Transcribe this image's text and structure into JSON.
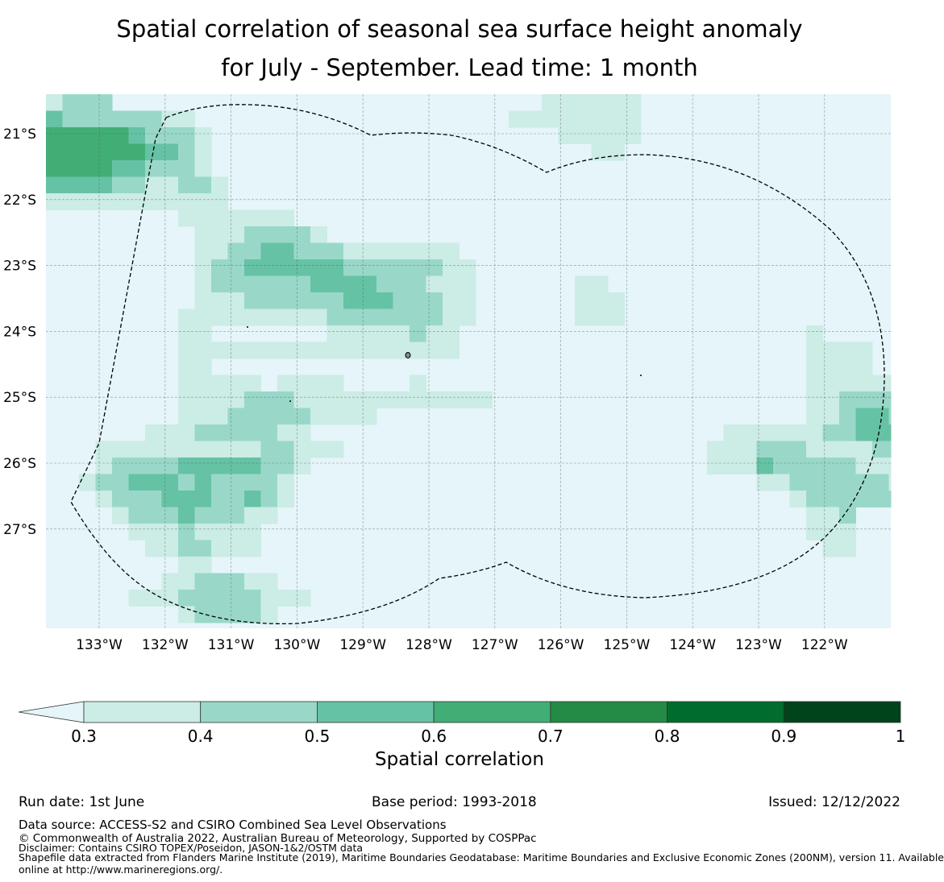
{
  "title": {
    "line1": "Spatial correlation of seasonal sea surface height anomaly",
    "line2": "for July - September. Lead time: 1 month"
  },
  "map": {
    "lat_ticks": [
      "21°S",
      "22°S",
      "23°S",
      "24°S",
      "25°S",
      "26°S",
      "27°S"
    ],
    "lon_ticks": [
      "133°W",
      "132°W",
      "131°W",
      "130°W",
      "129°W",
      "128°W",
      "127°W",
      "126°W",
      "125°W",
      "124°W",
      "123°W",
      "122°W"
    ],
    "background_color": "#e5f5f9",
    "grid_rows": [
      "1222000000000000000000000000001111110000000000000000",
      "3222222110000000000000000000111111110000000000000000",
      "4444432221000000000000000000000111110000000000000000",
      "4444443321000000000000000000000001100000000000000000",
      "4444332221000000000000000000000000000000000000000000",
      "3333221122100000000000000000000000000000000000000000",
      "1111111111100000000000000000000000000000000000000000",
      "0000000011111110000000000000000000000000000000000000",
      "0000000001112222100000000000000000000000000000000000",
      "0000000001122332221111111000000000000000000000000000",
      "0000000001223333332222221100000000000000000000000000",
      "0000000001222222333322211100000011000000000000000000",
      "0000000001112222223332221100000011100000000000000000",
      "0000000011111111122222221100000011100000000000000000",
      "0000000011000000011111211000000000000000000000100000",
      "0000000011111111111111111000000000000000000000111100000000",
      "0000000011000000000000000000000000000000000000111100000000",
      "0000000011111011110000100000000000000000000000111111000000",
      "0000000011112221111111111110000000000000000000112222110000",
      "0000000011122222111100000000000000000000000000112332210000",
      "0000001112222211000000000000000000000000011111122333321000",
      "0001111111111221110000000000000000000000111222111122221110",
      "0001222233333221000000000000000000000000111322222111221100",
      "0012233323222210000000000000000000000000000112222221000000",
      "0001222333223210000000000000000000000000000001222222100000",
      "0000122232221100000000000000000000000000000000112000000000",
      "0000011121111000000000000000000000000000000000111000000000",
      "0000001122111000000000000000000000000000000000011000000000",
      "0000000011000000000000000000000000000000000000000000000000",
      "0000000112221100000000000000000000000000000000000000000000",
      "0000011122222111000000000000000000000000000000000000000000",
      "0000000012222100000000000000000000000000000000000000000000"
    ],
    "class_colors": [
      "#e5f5f9",
      "#ccece6",
      "#99d8c9",
      "#66c2a4",
      "#41ae76",
      "#238b45",
      "#006d2c",
      "#00441b"
    ]
  },
  "colorbar": {
    "label": "Spatial correlation",
    "ticks": [
      "0.3",
      "0.4",
      "0.5",
      "0.6",
      "0.7",
      "0.8",
      "0.9",
      "1"
    ],
    "colors": [
      "#ccece6",
      "#99d8c9",
      "#66c2a4",
      "#41ae76",
      "#238b45",
      "#006d2c",
      "#00441b"
    ],
    "extend_color": "#e5f5f9"
  },
  "footer": {
    "run_date": "Run date: 1st June",
    "base_period": "Base period: 1993-2018",
    "issued": "Issued: 12/12/2022",
    "data_source": "Data source: ACCESS-S2 and CSIRO Combined Sea Level Observations",
    "copyright": "© Commonwealth of Australia 2022, Australian Bureau of Meteorology, Supported by COSPPac",
    "disclaimer": "Disclaimer: Contains CSIRO TOPEX/Poseidon, JASON-1&2/OSTM data",
    "shapefile1": "Shapefile data extracted from Flanders Marine Institute (2019), Maritime Boundaries Geodatabase: Maritime Boundaries and Exclusive Economic Zones (200NM), version 11. Available",
    "shapefile2": "online at http://www.marineregions.org/."
  }
}
